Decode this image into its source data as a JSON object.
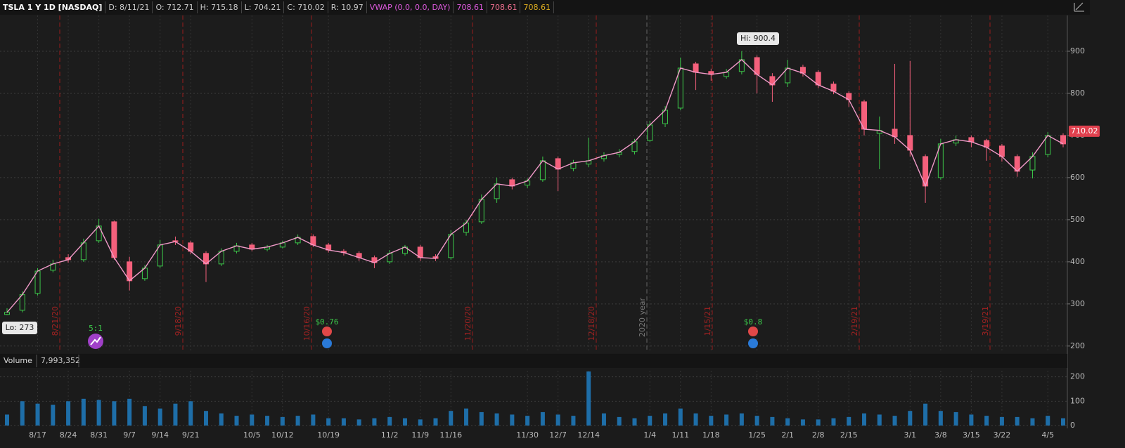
{
  "header": {
    "title": "TSLA 1 Y 1D [NASDAQ]",
    "fields": [
      "D: 8/11/21",
      "O: 712.71",
      "H: 715.18",
      "L: 704.21",
      "C: 710.02",
      "R: 10.97"
    ],
    "study": "VWAP (0.0, 0.0, DAY)",
    "study_values": [
      "708.61",
      "708.61",
      "708.61"
    ]
  },
  "chart_data": {
    "type": "candlestick",
    "categories": [
      null,
      null,
      "8/17",
      null,
      "8/24",
      null,
      "8/31",
      null,
      "9/7",
      null,
      "9/14",
      null,
      "9/21",
      null,
      null,
      null,
      "10/5",
      null,
      "10/12",
      null,
      null,
      "10/19",
      null,
      null,
      null,
      "11/2",
      null,
      "11/9",
      null,
      "11/16",
      null,
      null,
      null,
      null,
      "11/30",
      null,
      "12/7",
      null,
      "12/14",
      null,
      null,
      null,
      "1/4",
      null,
      "1/11",
      null,
      "1/18",
      null,
      null,
      "1/25",
      null,
      "2/1",
      null,
      "2/8",
      null,
      "2/15",
      null,
      null,
      null,
      "3/1",
      null,
      "3/8",
      null,
      "3/15",
      null,
      "3/22",
      null,
      null,
      "4/5",
      null
    ],
    "open": [
      275,
      285,
      325,
      380,
      410,
      405,
      450,
      495,
      400,
      360,
      390,
      450,
      445,
      420,
      395,
      425,
      440,
      430,
      435,
      445,
      460,
      440,
      425,
      420,
      410,
      400,
      420,
      435,
      412,
      410,
      470,
      495,
      550,
      595,
      582,
      595,
      645,
      622,
      632,
      645,
      655,
      662,
      688,
      728,
      765,
      870,
      852,
      840,
      852,
      885,
      840,
      825,
      862,
      850,
      822,
      800,
      780,
      705,
      715,
      700,
      650,
      600,
      682,
      695,
      688,
      675,
      650,
      618,
      655,
      700
    ],
    "high": [
      290,
      330,
      385,
      405,
      418,
      455,
      502,
      498,
      412,
      392,
      452,
      460,
      450,
      425,
      432,
      445,
      445,
      440,
      450,
      465,
      465,
      445,
      430,
      425,
      415,
      428,
      440,
      440,
      418,
      475,
      500,
      560,
      600,
      600,
      598,
      650,
      650,
      642,
      695,
      660,
      668,
      692,
      735,
      770,
      885,
      875,
      858,
      858,
      900.4,
      890,
      848,
      880,
      868,
      855,
      828,
      805,
      785,
      745,
      870,
      877,
      655,
      692,
      700,
      700,
      692,
      680,
      655,
      660,
      708,
      705
    ],
    "low": [
      273,
      280,
      320,
      375,
      398,
      400,
      445,
      405,
      332,
      355,
      385,
      440,
      418,
      352,
      390,
      420,
      425,
      425,
      432,
      440,
      435,
      422,
      415,
      402,
      385,
      395,
      415,
      402,
      402,
      405,
      462,
      490,
      540,
      572,
      575,
      590,
      568,
      615,
      625,
      638,
      648,
      655,
      685,
      720,
      760,
      808,
      830,
      835,
      845,
      800,
      780,
      815,
      840,
      812,
      798,
      768,
      700,
      620,
      680,
      650,
      540,
      595,
      675,
      672,
      640,
      638,
      602,
      598,
      648,
      672
    ],
    "close": [
      280,
      322,
      378,
      395,
      405,
      445,
      485,
      410,
      355,
      385,
      440,
      448,
      425,
      395,
      425,
      438,
      430,
      435,
      445,
      458,
      440,
      428,
      422,
      410,
      398,
      420,
      435,
      410,
      408,
      465,
      492,
      548,
      585,
      580,
      592,
      640,
      620,
      635,
      640,
      652,
      660,
      685,
      725,
      760,
      860,
      850,
      845,
      850,
      880,
      845,
      820,
      860,
      848,
      820,
      805,
      785,
      715,
      712,
      697,
      665,
      580,
      680,
      690,
      685,
      672,
      650,
      615,
      650,
      700,
      680
    ],
    "up_color": "#3cc84a",
    "down_color": "#f4607c",
    "close_line_color": "#f09ac8",
    "ylim": [
      188,
      985
    ],
    "yticks": [
      200,
      300,
      400,
      500,
      600,
      700,
      800,
      900
    ],
    "grid": true,
    "annotations": {
      "high": "Hi: 900.4",
      "low": "Lo: 273",
      "last": 710.02,
      "split": "5:1",
      "dividends": [
        "$0.76",
        "$0.8"
      ],
      "period_markers": [
        "8/21/20",
        "9/18/20",
        "10/16/20",
        "11/20/20",
        "12/18/20",
        "1/15/21",
        "2/19/21",
        "3/19/21"
      ],
      "year_marker": "2020 year"
    },
    "volume": {
      "title": "Volume",
      "label": "7,993,352",
      "color": "#1e6ea8",
      "values": [
        45,
        100,
        90,
        85,
        100,
        110,
        105,
        100,
        110,
        80,
        70,
        90,
        100,
        60,
        50,
        40,
        45,
        40,
        35,
        40,
        45,
        30,
        30,
        25,
        30,
        35,
        30,
        25,
        30,
        60,
        70,
        55,
        50,
        45,
        40,
        55,
        45,
        40,
        222,
        50,
        35,
        30,
        40,
        50,
        70,
        50,
        40,
        45,
        50,
        40,
        35,
        30,
        25,
        25,
        30,
        35,
        50,
        45,
        40,
        60,
        90,
        60,
        55,
        45,
        40,
        35,
        35,
        30,
        40,
        30
      ],
      "ylim": [
        0,
        225
      ],
      "yticks": [
        0,
        100,
        200
      ]
    }
  }
}
